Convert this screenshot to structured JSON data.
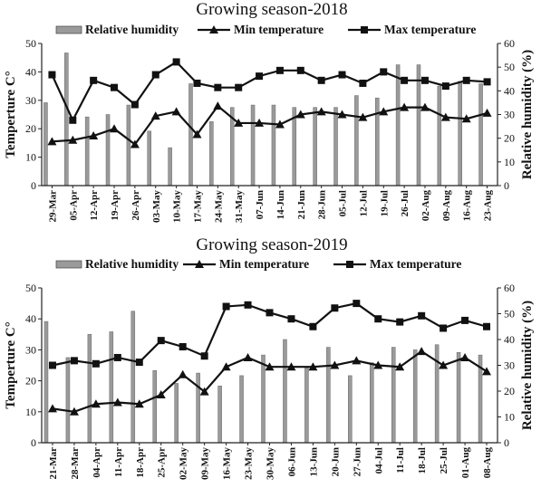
{
  "legend": {
    "rh": "Relative humidity",
    "min": "Min temperature",
    "max": "Max temperature"
  },
  "colors": {
    "bar": "#9a9a9a",
    "line": "#111111"
  },
  "chart_data": [
    {
      "type": "bar+line",
      "title": "Growing season-2018",
      "ylabel": "Temperture C°",
      "y2label": "Relative humidity (%)",
      "ylim": [
        0,
        50
      ],
      "y2lim": [
        0,
        60
      ],
      "yticks": [
        0,
        10,
        20,
        30,
        40,
        50
      ],
      "y2ticks": [
        0,
        10,
        20,
        30,
        40,
        50,
        60
      ],
      "categories": [
        "29-Mar",
        "05-Apr",
        "12-Apr",
        "19-Apr",
        "26-Apr",
        "03-May",
        "10-May",
        "17-May",
        "24-May",
        "31-May",
        "07-Jun",
        "14-Jun",
        "21-Jun",
        "28-Jun",
        "05-Jul",
        "12-Jul",
        "19-Jul",
        "26-Jul",
        "02-Aug",
        "09-Aug",
        "16-Aug",
        "23-Aug"
      ],
      "series": [
        {
          "name": "Relative humidity",
          "kind": "bar",
          "axis": "right",
          "values": [
            35,
            56,
            29,
            30,
            34,
            23,
            16,
            43,
            27,
            33,
            34,
            34,
            33,
            33,
            33,
            38,
            37,
            51,
            51,
            42,
            44,
            43
          ]
        },
        {
          "name": "Min temperature",
          "kind": "line",
          "marker": "triangle",
          "axis": "left",
          "values": [
            15.5,
            16,
            17.5,
            20,
            14.5,
            24.5,
            26,
            18,
            28,
            22,
            22,
            21.5,
            25,
            26,
            25,
            24,
            26,
            27.5,
            27.5,
            24,
            23.5,
            25.5
          ]
        },
        {
          "name": "Max temperature",
          "kind": "line",
          "marker": "square",
          "axis": "left",
          "values": [
            39,
            23,
            37,
            34.5,
            28.5,
            39,
            43.5,
            36,
            34.5,
            34.5,
            38.5,
            40.5,
            40.5,
            37,
            39,
            36,
            40,
            37,
            37,
            35,
            37,
            36.5
          ]
        }
      ]
    },
    {
      "type": "bar+line",
      "title": "Growing season-2019",
      "ylabel": "Temperture C°",
      "y2label": "Relative humidity (%)",
      "ylim": [
        0,
        50
      ],
      "y2lim": [
        0,
        60
      ],
      "yticks": [
        0,
        10,
        20,
        30,
        40,
        50
      ],
      "y2ticks": [
        0,
        10,
        20,
        30,
        40,
        50,
        60
      ],
      "categories": [
        "21-Mar",
        "28-Mar",
        "04-Apr",
        "11-Apr",
        "18-Apr",
        "25-Apr",
        "02-May",
        "09-May",
        "16-May",
        "23-May",
        "30-May",
        "06-Jun",
        "13-Jun",
        "20-Jun",
        "27-Jun",
        "04-Jul",
        "11-Jul",
        "18-Jul",
        "25-Jul",
        "01-Aug",
        "08-Aug"
      ],
      "series": [
        {
          "name": "Relative humidity",
          "kind": "bar",
          "axis": "right",
          "values": [
            47,
            33,
            42,
            43,
            51,
            28,
            23,
            27,
            22,
            26,
            34,
            40,
            29,
            37,
            26,
            31,
            37,
            36,
            38,
            35,
            34
          ]
        },
        {
          "name": "Min temperature",
          "kind": "line",
          "marker": "triangle",
          "axis": "left",
          "values": [
            11,
            10,
            12.5,
            13,
            12.5,
            15.5,
            22,
            16.5,
            24.5,
            27.5,
            24.5,
            24.5,
            24.5,
            25,
            26.5,
            25,
            24.5,
            29.5,
            25,
            27.5,
            23
          ]
        },
        {
          "name": "Max temperature",
          "kind": "line",
          "marker": "square",
          "axis": "left",
          "values": [
            25,
            26.5,
            25.5,
            27.5,
            26,
            33,
            31,
            28,
            44,
            44.5,
            42,
            40,
            37.5,
            43.5,
            45,
            40,
            39,
            41,
            37,
            39.5,
            37.5
          ]
        }
      ]
    }
  ]
}
